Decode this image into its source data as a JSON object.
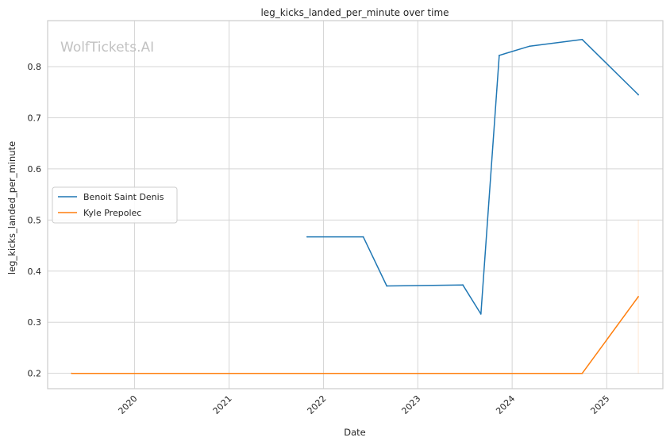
{
  "chart_data": {
    "type": "line",
    "title": "leg_kicks_landed_per_minute over time",
    "xlabel": "Date",
    "ylabel": "leg_kicks_landed_per_minute",
    "watermark": "WolfTickets.AI",
    "x_tick_labels": [
      "2020",
      "2021",
      "2022",
      "2023",
      "2024",
      "2025"
    ],
    "y_tick_labels": [
      "0.2",
      "0.3",
      "0.4",
      "0.5",
      "0.6",
      "0.7",
      "0.8"
    ],
    "y_ticks": [
      0.2,
      0.3,
      0.4,
      0.5,
      0.6,
      0.7,
      0.8
    ],
    "xlim": [
      "2019-01-30",
      "2025-08-06"
    ],
    "ylim": [
      0.17,
      0.89
    ],
    "grid": true,
    "legend_position": "center-left",
    "series": [
      {
        "name": "Benoit Saint Denis",
        "color": "#1f77b4",
        "points": [
          {
            "x": "2021-10-30",
            "y": 0.467
          },
          {
            "x": "2022-06-04",
            "y": 0.467
          },
          {
            "x": "2022-09-03",
            "y": 0.371
          },
          {
            "x": "2023-06-24",
            "y": 0.373
          },
          {
            "x": "2023-09-02",
            "y": 0.316
          },
          {
            "x": "2023-11-12",
            "y": 0.822
          },
          {
            "x": "2024-03-09",
            "y": 0.84
          },
          {
            "x": "2024-09-28",
            "y": 0.853
          },
          {
            "x": "2025-05-03",
            "y": 0.745
          }
        ]
      },
      {
        "name": "Kyle Prepolec",
        "color": "#ff7f0e",
        "points": [
          {
            "x": "2019-05-03",
            "y": 0.2
          },
          {
            "x": "2024-09-28",
            "y": 0.2
          },
          {
            "x": "2025-05-03",
            "y": 0.35
          }
        ],
        "error_band": {
          "x": "2025-05-03",
          "y_low": 0.2,
          "y_high": 0.5
        }
      }
    ]
  }
}
